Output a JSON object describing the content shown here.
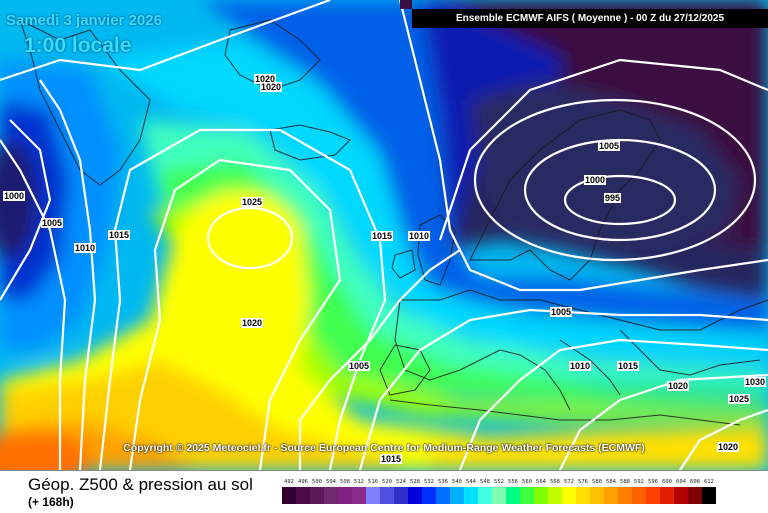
{
  "title": {
    "date": "Samedi 3 janvier 2026",
    "time": "1:00 locale"
  },
  "model_banner": "Ensemble ECMWF AIFS  ( Moyenne )  - 00 Z du 27/12/2025",
  "copyright": "Copyright © 2025 Meteociel.fr - Source European Centre for Medium-Range Weather Forecasts (ECMWF)",
  "legend": {
    "title": "Géop. Z500 & pression au sol",
    "subtitle": "(+ 168h)"
  },
  "isobar_labels": [
    "1020",
    "1020",
    "1000",
    "1005",
    "1010",
    "1015",
    "1025",
    "1020",
    "1015",
    "1010",
    "1005",
    "1000",
    "995",
    "1005",
    "1005",
    "1010",
    "1015",
    "1020",
    "1030",
    "1025",
    "1020",
    "1015"
  ],
  "scale": {
    "labels": [
      "492",
      "496",
      "500",
      "504",
      "508",
      "512",
      "516",
      "520",
      "524",
      "528",
      "532",
      "536",
      "540",
      "544",
      "548",
      "552",
      "556",
      "560",
      "564",
      "568",
      "572",
      "576",
      "580",
      "584",
      "588",
      "592",
      "596",
      "600",
      "604",
      "608",
      "612"
    ],
    "colors": [
      "#330033",
      "#4a0a4a",
      "#5c1a5c",
      "#6e2a6e",
      "#802080",
      "#8a2a8a",
      "#8080ff",
      "#5050e0",
      "#3030c8",
      "#0000dd",
      "#0030ff",
      "#0070ff",
      "#00b0ff",
      "#00e0ff",
      "#40ffe0",
      "#80ffb0",
      "#00ff80",
      "#40ff40",
      "#80ff00",
      "#c0ff00",
      "#ffff00",
      "#ffe000",
      "#ffc000",
      "#ffa000",
      "#ff8000",
      "#ff6000",
      "#ff4000",
      "#e02000",
      "#b00000",
      "#800000",
      "#000000"
    ]
  },
  "colors": {
    "accent_title": "#35e0ff",
    "banner_bg": "#000000"
  }
}
